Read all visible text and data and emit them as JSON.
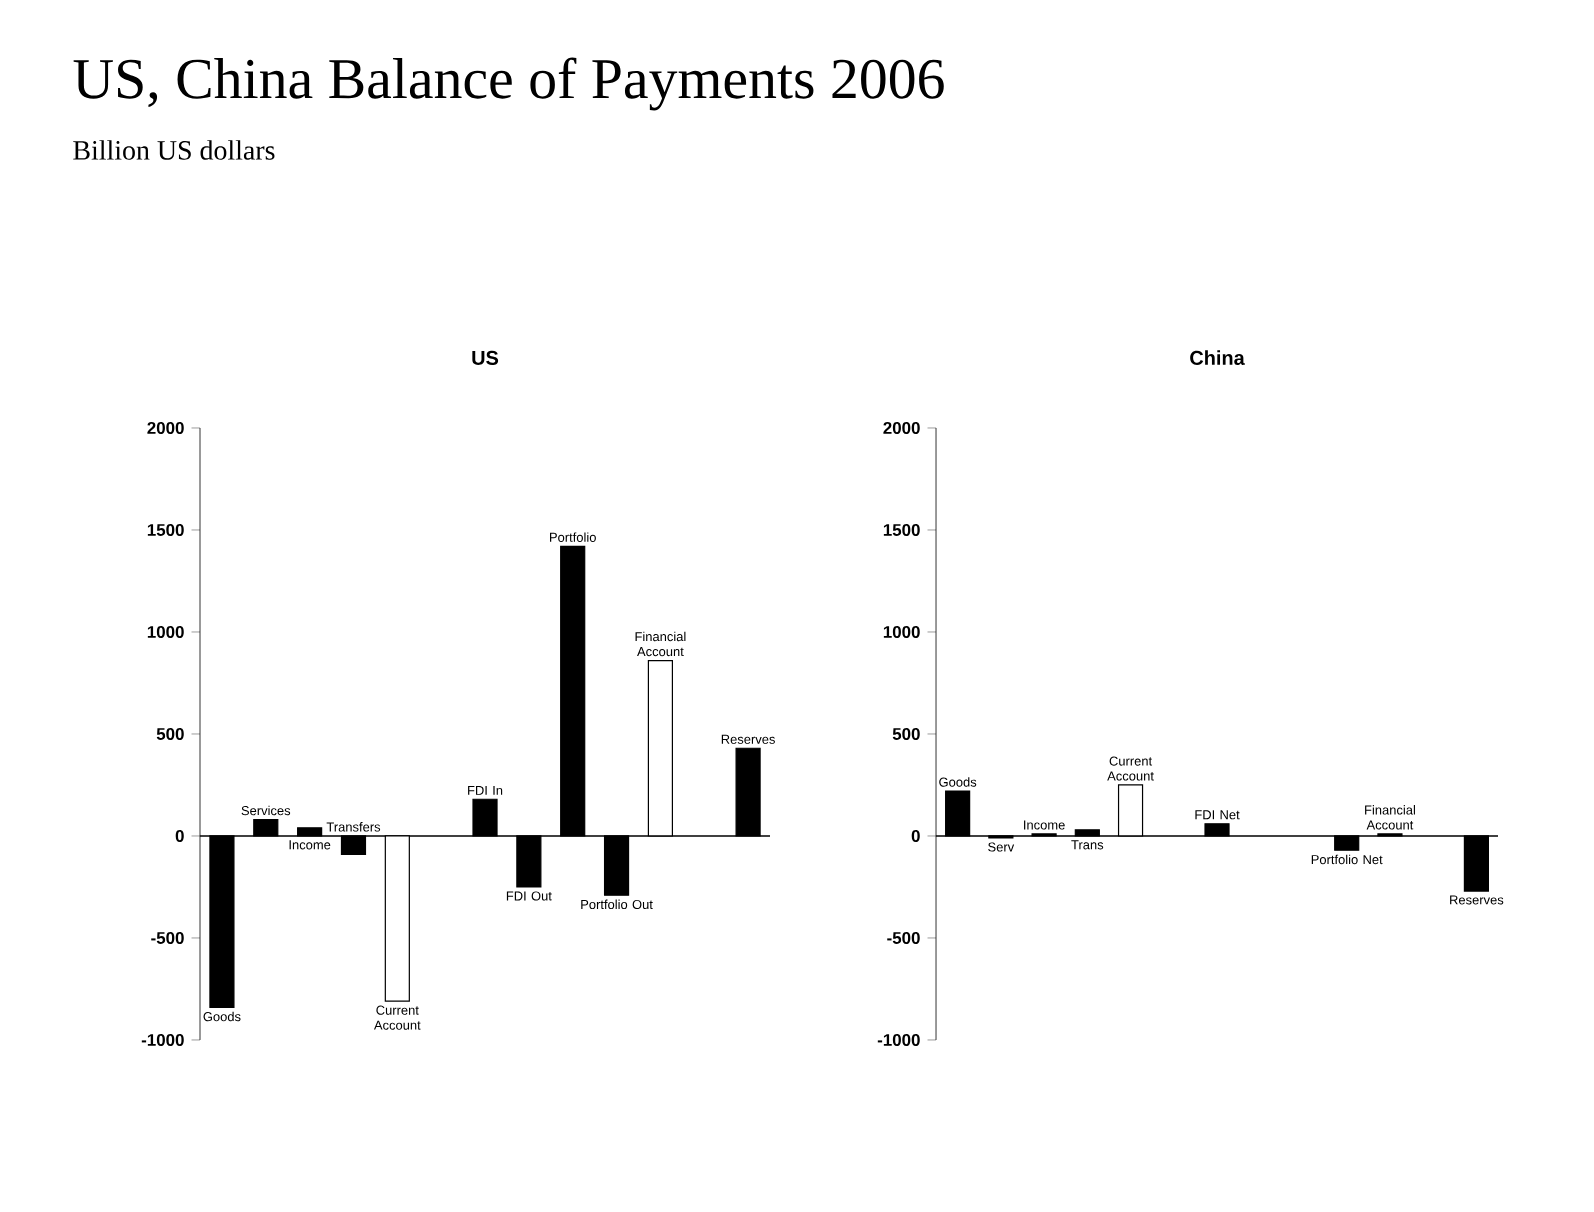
{
  "chart_data": [
    {
      "type": "bar",
      "title": "US",
      "annotations": [
        "US, China Balance of Payments 2006",
        "Billion US dollars"
      ],
      "categories": [
        "Goods",
        "Services",
        "Income",
        "Transfers",
        "Current Account",
        null,
        "FDI In",
        "FDI Out",
        "Portfolio",
        "Portfolio Out",
        "Financial Account",
        null,
        "Reserves"
      ],
      "values": [
        -840,
        80,
        40,
        -90,
        -810,
        null,
        180,
        -250,
        1420,
        -290,
        860,
        null,
        430
      ],
      "colors": [
        "#000000",
        "#000000",
        "#000000",
        "#000000",
        "#ffffff",
        null,
        "#000000",
        "#000000",
        "#000000",
        "#000000",
        "#ffffff",
        null,
        "#000000"
      ],
      "ylim": [
        -1000,
        2000
      ],
      "yticks": [
        -1000,
        -500,
        0,
        500,
        1000,
        1500,
        2000
      ]
    },
    {
      "type": "bar",
      "title": "China",
      "categories": [
        "Goods",
        "Serv",
        "Income",
        "Trans",
        "Current Account",
        null,
        "FDI Net",
        null,
        null,
        "Portfolio Net",
        "Financial Account",
        null,
        "Reserves"
      ],
      "values": [
        220,
        -10,
        10,
        30,
        250,
        null,
        60,
        null,
        null,
        -70,
        10,
        null,
        -270
      ],
      "colors": [
        "#000000",
        "#000000",
        "#000000",
        "#000000",
        "#ffffff",
        null,
        "#000000",
        null,
        null,
        "#000000",
        "#000000",
        null,
        "#000000"
      ],
      "ylim": [
        -1000,
        2000
      ],
      "yticks": [
        -1000,
        -500,
        0,
        500,
        1000,
        1500,
        2000
      ]
    }
  ]
}
